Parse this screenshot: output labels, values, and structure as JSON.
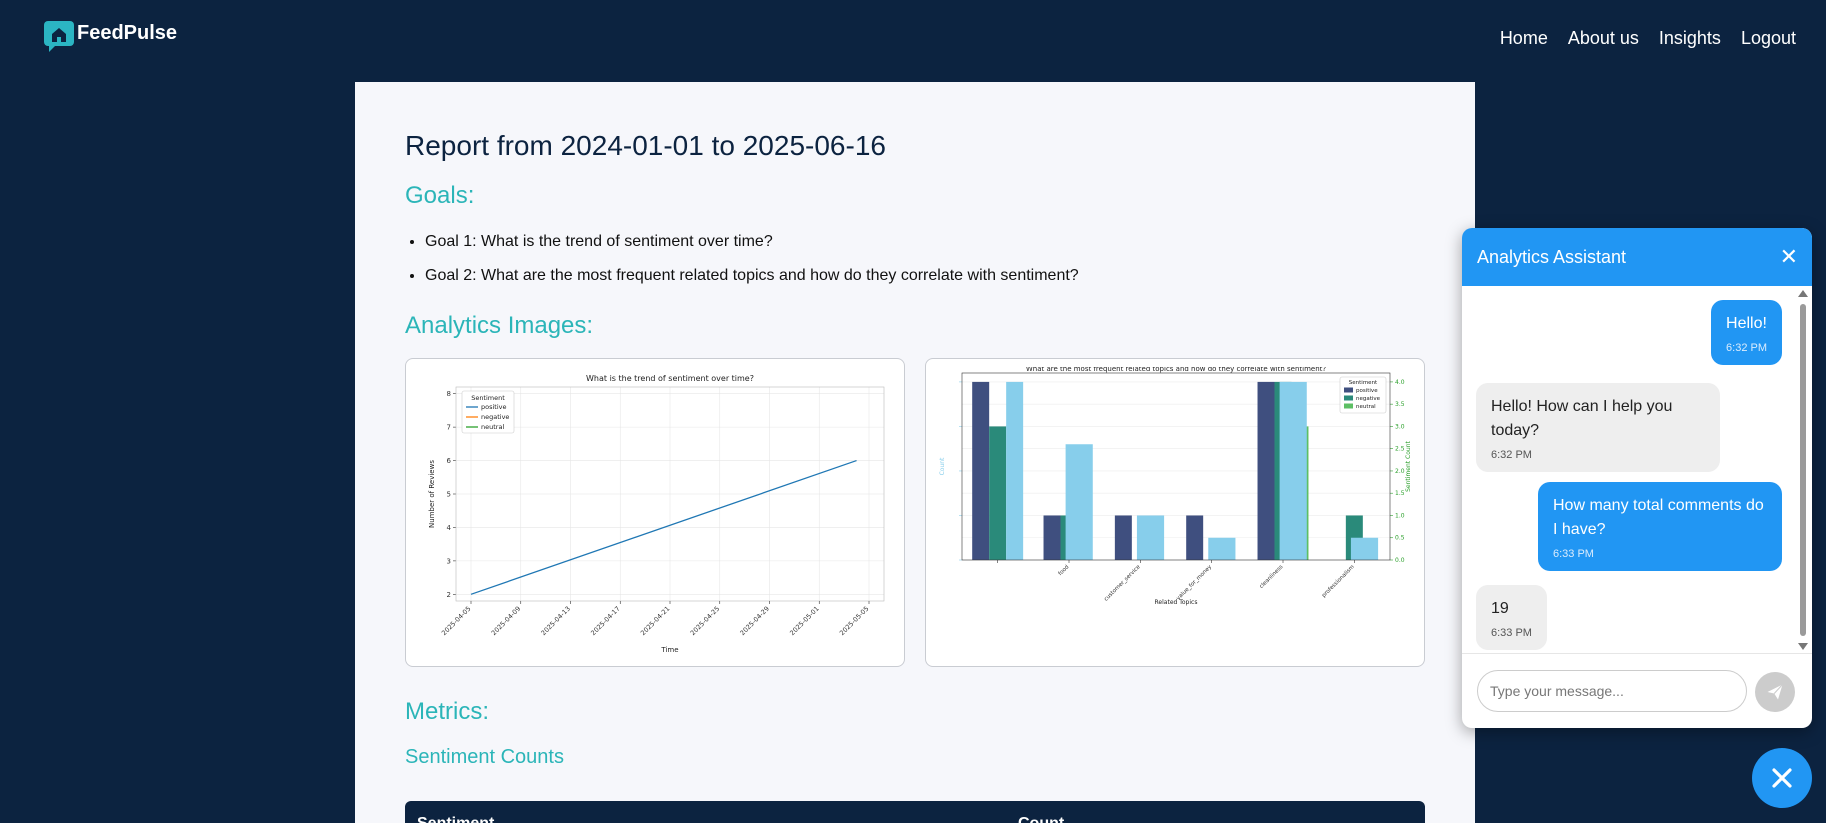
{
  "brand": {
    "name": "FeedPulse",
    "logo_icon": "chat-bubble-house-icon"
  },
  "nav": {
    "items": [
      "Home",
      "About us",
      "Insights",
      "Logout"
    ]
  },
  "report": {
    "title": "Report from 2024-01-01 to 2025-06-16",
    "goals_heading": "Goals:",
    "goals": [
      "Goal 1: What is the trend of sentiment over time?",
      "Goal 2: What are the most frequent related topics and how do they correlate with sentiment?"
    ],
    "images_heading": "Analytics Images:",
    "metrics_heading": "Metrics:",
    "sentiment_counts_heading": "Sentiment Counts",
    "table_headers": [
      "Sentiment",
      "Count"
    ]
  },
  "chart_data": [
    {
      "type": "line",
      "title": "What is the trend of sentiment over time?",
      "xlabel": "Time",
      "ylabel": "Number of Reviews",
      "x_ticks": [
        "2025-04-05",
        "2025-04-09",
        "2025-04-13",
        "2025-04-17",
        "2025-04-21",
        "2025-04-25",
        "2025-04-29",
        "2025-05-01",
        "2025-05-05"
      ],
      "y_ticks": [
        2,
        3,
        4,
        5,
        6,
        7,
        8
      ],
      "ylim": [
        1.8,
        8.2
      ],
      "grid": true,
      "legend": {
        "title": "Sentiment",
        "position": "top-left",
        "entries": [
          "positive",
          "negative",
          "neutral"
        ]
      },
      "colors": {
        "positive": "#1f77b4",
        "negative": "#ff7f0e",
        "neutral": "#2ca02c"
      },
      "series": [
        {
          "name": "positive",
          "x": [
            "2025-04-05",
            "2025-05-04"
          ],
          "y": [
            2,
            6
          ]
        }
      ]
    },
    {
      "type": "bar",
      "title": "What are the most frequent related topics and how do they correlate with sentiment?",
      "xlabel": "Related Topics",
      "ylabel": "Count",
      "y2label": "Sentiment Count",
      "categories": [
        "",
        "food",
        "customer_service",
        "value_for_money",
        "cleanliness",
        "professionalism"
      ],
      "count_values": [
        4,
        2.6,
        1,
        0.5,
        4,
        0.5
      ],
      "count_ylim": [
        0,
        4.2
      ],
      "y2_ticks": [
        0.0,
        0.5,
        1.0,
        1.5,
        2.0,
        2.5,
        3.0,
        3.5,
        4.0
      ],
      "y2lim": [
        0,
        4.2
      ],
      "series": [
        {
          "name": "positive",
          "values": [
            4,
            1,
            1,
            1,
            4,
            0
          ]
        },
        {
          "name": "negative",
          "values": [
            3,
            1,
            0,
            0,
            4,
            1
          ]
        },
        {
          "name": "neutral",
          "values": [
            0,
            0,
            0,
            0,
            3,
            0
          ]
        }
      ],
      "colors": {
        "count": "#87ceeb",
        "positive": "#3f4f7f",
        "negative": "#2a8a7a",
        "neutral": "#5dbf64",
        "y2": "#2ca02c"
      },
      "legend": {
        "title": "Sentiment",
        "position": "top-right",
        "entries": [
          "positive",
          "negative",
          "neutral"
        ]
      },
      "grid": true
    }
  ],
  "chat": {
    "title": "Analytics Assistant",
    "close_icon": "close-icon",
    "messages": [
      {
        "role": "user",
        "text": "Hello!",
        "time": "6:32 PM"
      },
      {
        "role": "bot",
        "text": "Hello! How can I help you today?",
        "time": "6:32 PM"
      },
      {
        "role": "user",
        "text": "How many total comments do I have?",
        "time": "6:33 PM"
      },
      {
        "role": "bot",
        "text": "19",
        "time": "6:33 PM"
      }
    ],
    "input_placeholder": "Type your message...",
    "send_icon": "send-icon",
    "toggle_icon": "close-icon"
  }
}
